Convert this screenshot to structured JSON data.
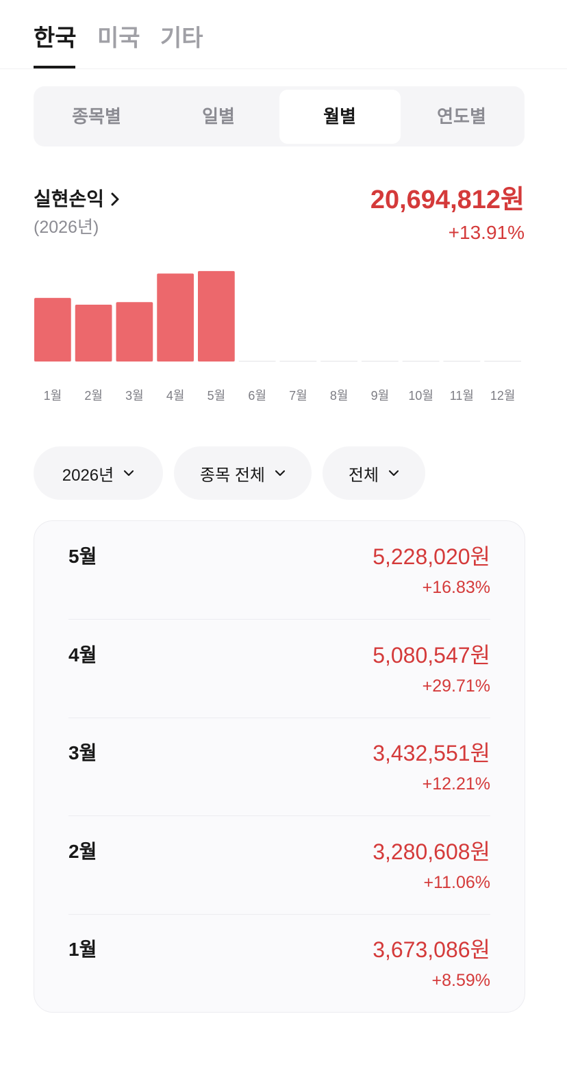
{
  "tabs": [
    "한국",
    "미국",
    "기타"
  ],
  "segments": [
    "종목별",
    "일별",
    "월별",
    "연도별"
  ],
  "summary": {
    "title": "실현손익",
    "period": "(2026년)",
    "amount": "20,694,812원",
    "rate": "+13.91%"
  },
  "chart_data": {
    "type": "bar",
    "categories": [
      "1월",
      "2월",
      "3월",
      "4월",
      "5월",
      "6월",
      "7월",
      "8월",
      "9월",
      "10월",
      "11월",
      "12월"
    ],
    "values": [
      3673086,
      3280608,
      3432551,
      5080547,
      5228020,
      null,
      null,
      null,
      null,
      null,
      null,
      null
    ],
    "color": "#ec686c",
    "ylim": [
      0,
      5300000
    ]
  },
  "filters": [
    "2026년",
    "종목 전체",
    "전체"
  ],
  "records": [
    {
      "month": "5월",
      "amount": "5,228,020원",
      "rate": "+16.83%"
    },
    {
      "month": "4월",
      "amount": "5,080,547원",
      "rate": "+29.71%"
    },
    {
      "month": "3월",
      "amount": "3,432,551원",
      "rate": "+12.21%"
    },
    {
      "month": "2월",
      "amount": "3,280,608원",
      "rate": "+11.06%"
    },
    {
      "month": "1월",
      "amount": "3,673,086원",
      "rate": "+8.59%"
    }
  ]
}
